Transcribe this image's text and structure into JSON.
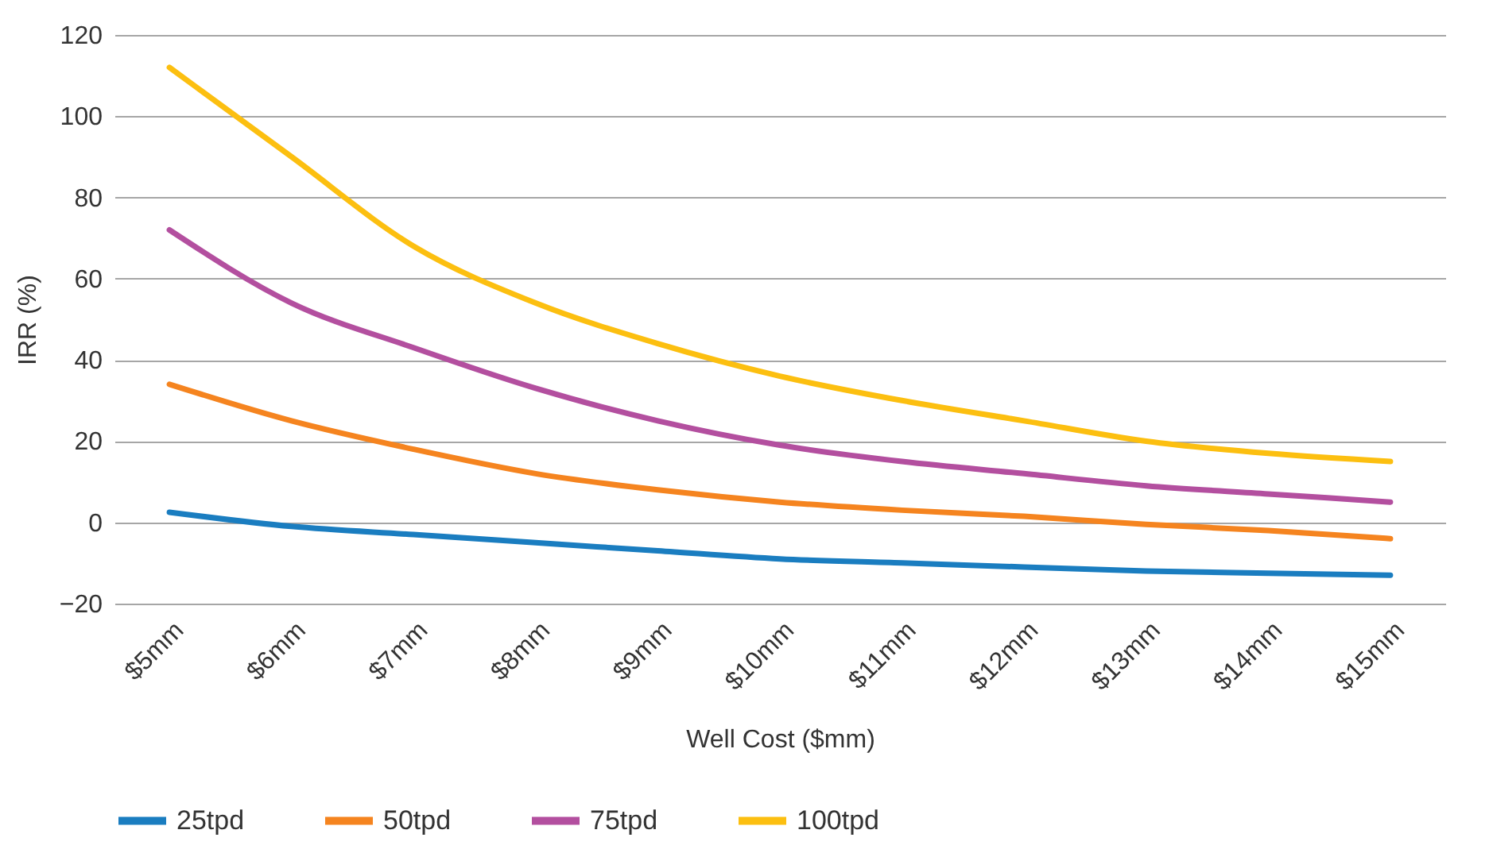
{
  "chart_data": {
    "type": "line",
    "xlabel": "Well Cost ($mm)",
    "ylabel": "IRR (%)",
    "categories": [
      "$5mm",
      "$6mm",
      "$7mm",
      "$8mm",
      "$9mm",
      "$10mm",
      "$11mm",
      "$12mm",
      "$13mm",
      "$14mm",
      "$15mm"
    ],
    "series": [
      {
        "name": "25tpd",
        "color": "#1a7dc0",
        "values": [
          2.5,
          -1,
          -3,
          -5,
          -7,
          -9,
          -10,
          -11,
          -12,
          -12.5,
          -13
        ]
      },
      {
        "name": "50tpd",
        "color": "#f5841f",
        "values": [
          34,
          25,
          18,
          12,
          8,
          5,
          3,
          1.5,
          -0.5,
          -2,
          -4
        ]
      },
      {
        "name": "75tpd",
        "color": "#b34f9f",
        "values": [
          72,
          54,
          43,
          33,
          25,
          19,
          15,
          12,
          9,
          7,
          5
        ]
      },
      {
        "name": "100tpd",
        "color": "#fcbf10",
        "values": [
          112,
          90,
          68,
          54,
          44,
          36,
          30,
          25,
          20,
          17,
          15
        ]
      }
    ],
    "ylim": [
      -20,
      120
    ],
    "yticks": [
      -20,
      0,
      20,
      40,
      60,
      80,
      100,
      120
    ],
    "grid": "y",
    "legend": "bottom",
    "marker": "none",
    "line_style": "solid"
  }
}
